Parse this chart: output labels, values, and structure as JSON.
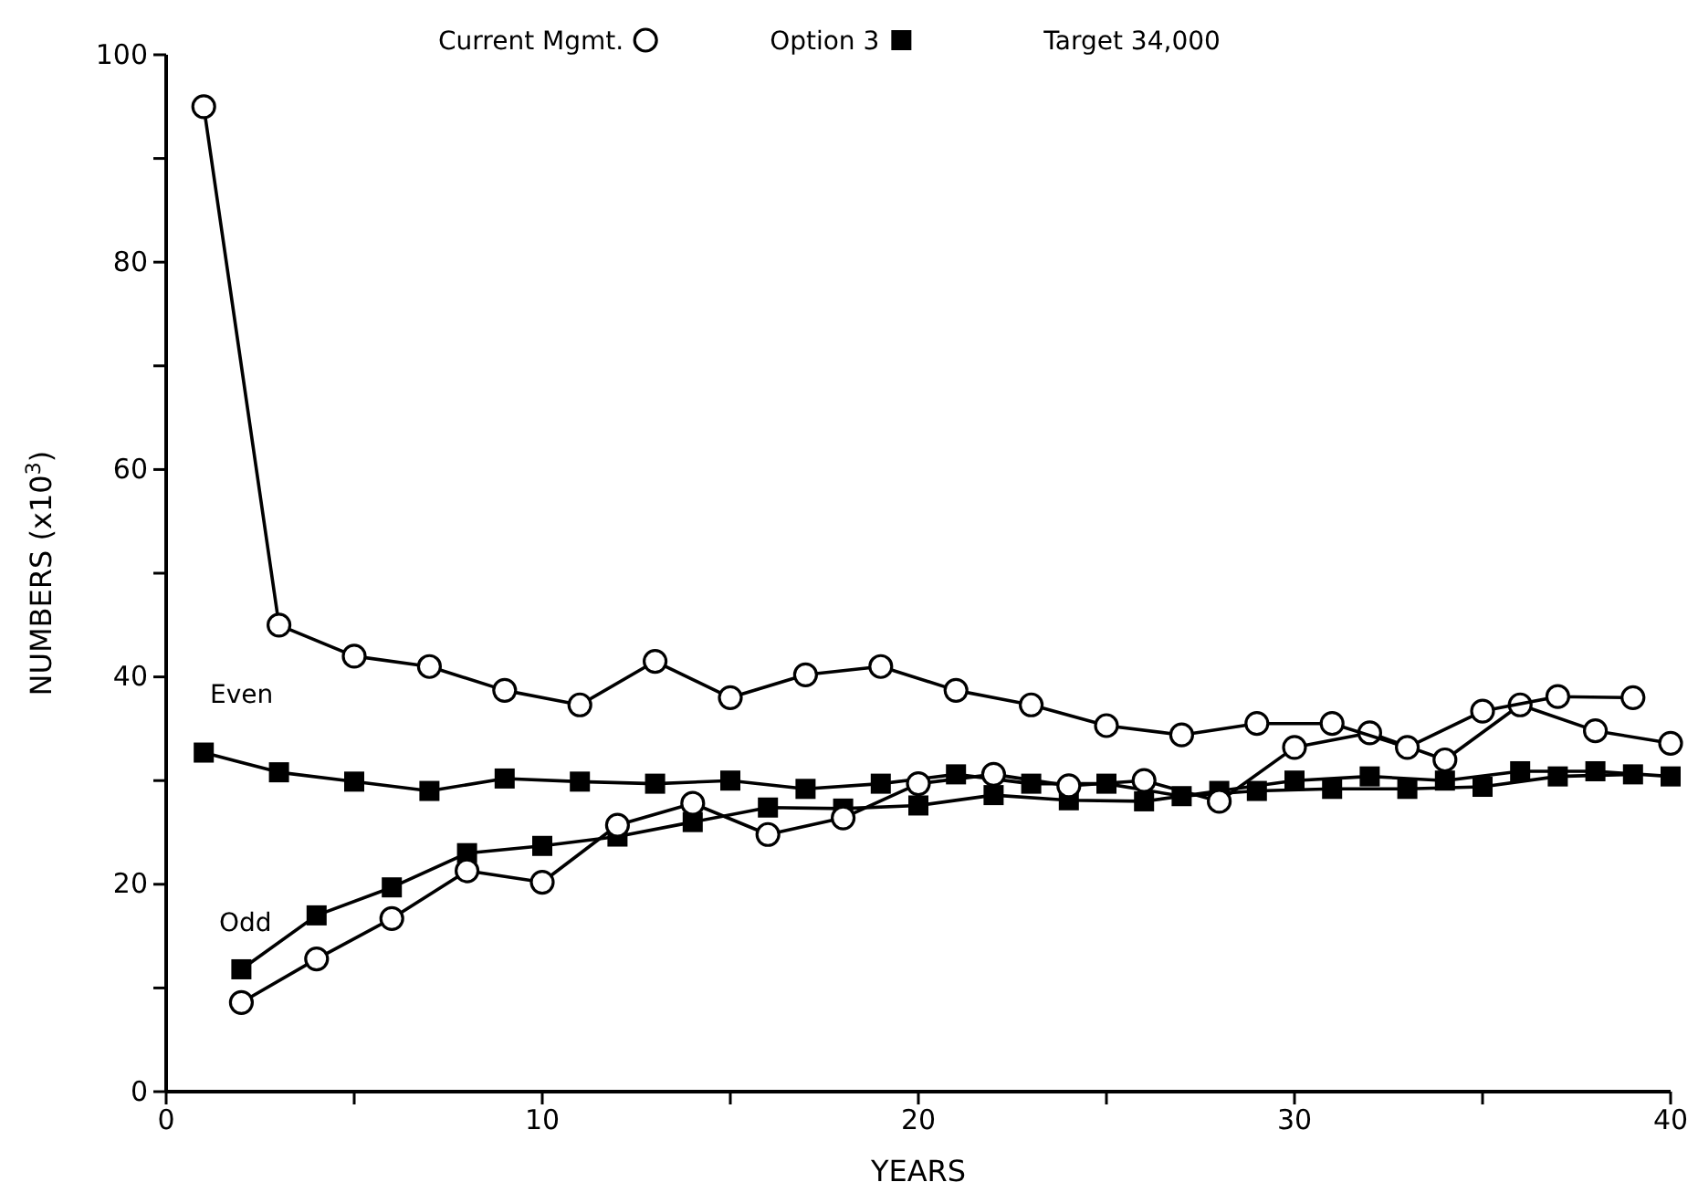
{
  "chart_data": {
    "type": "line",
    "xlabel": "YEARS",
    "ylabel": "NUMBERS (x10$^{3}$)",
    "xlim": [
      0,
      40
    ],
    "xticks": [
      0,
      {
        "value": 5,
        "label": null
      },
      10,
      {
        "value": 15,
        "label": null
      },
      20,
      {
        "value": 25,
        "label": null
      },
      30,
      {
        "value": 35,
        "label": null
      },
      40
    ],
    "ylim": [
      0,
      100
    ],
    "yticks": [
      0,
      {
        "value": 10,
        "label": null
      },
      20,
      {
        "value": 30,
        "label": null
      },
      40,
      {
        "value": 50,
        "label": null
      },
      60,
      {
        "value": 70,
        "label": null
      },
      80,
      {
        "value": 90,
        "label": null
      },
      100
    ],
    "legend": "top",
    "grid": false,
    "line_style": "solid",
    "series": [
      {
        "name": "Current Mgmt.",
        "color": "#000000",
        "marker": "circle",
        "x": [
          1,
          3,
          5,
          7,
          9,
          11,
          13,
          15,
          17,
          19,
          21,
          23,
          25,
          27,
          29,
          31,
          33,
          35,
          37,
          39
        ],
        "values": [
          95,
          45,
          42,
          41,
          38.7,
          37.3,
          41.5,
          38,
          40.2,
          41,
          38.7,
          37.3,
          35.3,
          34.4,
          35.5,
          35.5,
          33.2,
          36.7,
          38.1,
          38
        ]
      },
      {
        "color": "#000000",
        "marker": "circle",
        "x": [
          2,
          4,
          6,
          8,
          10,
          12,
          14,
          16,
          18,
          20,
          22,
          24,
          26,
          28,
          30,
          32,
          34,
          36,
          38,
          40
        ],
        "values": [
          8.6,
          12.8,
          16.7,
          21.3,
          20.2,
          25.7,
          27.8,
          24.8,
          26.4,
          29.7,
          30.6,
          29.5,
          30,
          28,
          33.2,
          34.6,
          32,
          37.3,
          34.8,
          33.6
        ]
      },
      {
        "name": "Option 3",
        "color": "#000000",
        "marker": "square",
        "x": [
          1,
          3,
          5,
          7,
          9,
          11,
          13,
          15,
          17,
          19,
          21,
          23,
          25,
          27,
          29,
          31,
          33,
          35,
          37,
          39
        ],
        "values": [
          32.7,
          30.8,
          29.9,
          29,
          30.2,
          29.9,
          29.7,
          30,
          29.2,
          29.7,
          30.6,
          29.7,
          29.7,
          28.5,
          29,
          29.2,
          29.2,
          29.4,
          30.4,
          30.6
        ]
      },
      {
        "color": "#000000",
        "marker": "square",
        "x": [
          2,
          4,
          6,
          8,
          10,
          12,
          14,
          16,
          18,
          20,
          22,
          24,
          26,
          28,
          30,
          32,
          34,
          36,
          38,
          40
        ],
        "values": [
          11.8,
          17,
          19.7,
          23,
          23.7,
          24.6,
          26,
          27.4,
          27.3,
          27.6,
          28.6,
          28.1,
          28,
          29,
          30,
          30.4,
          30,
          30.9,
          30.9,
          30.4
        ]
      }
    ],
    "annotations": [
      "Target 34,000",
      "Even",
      "Odd"
    ]
  }
}
